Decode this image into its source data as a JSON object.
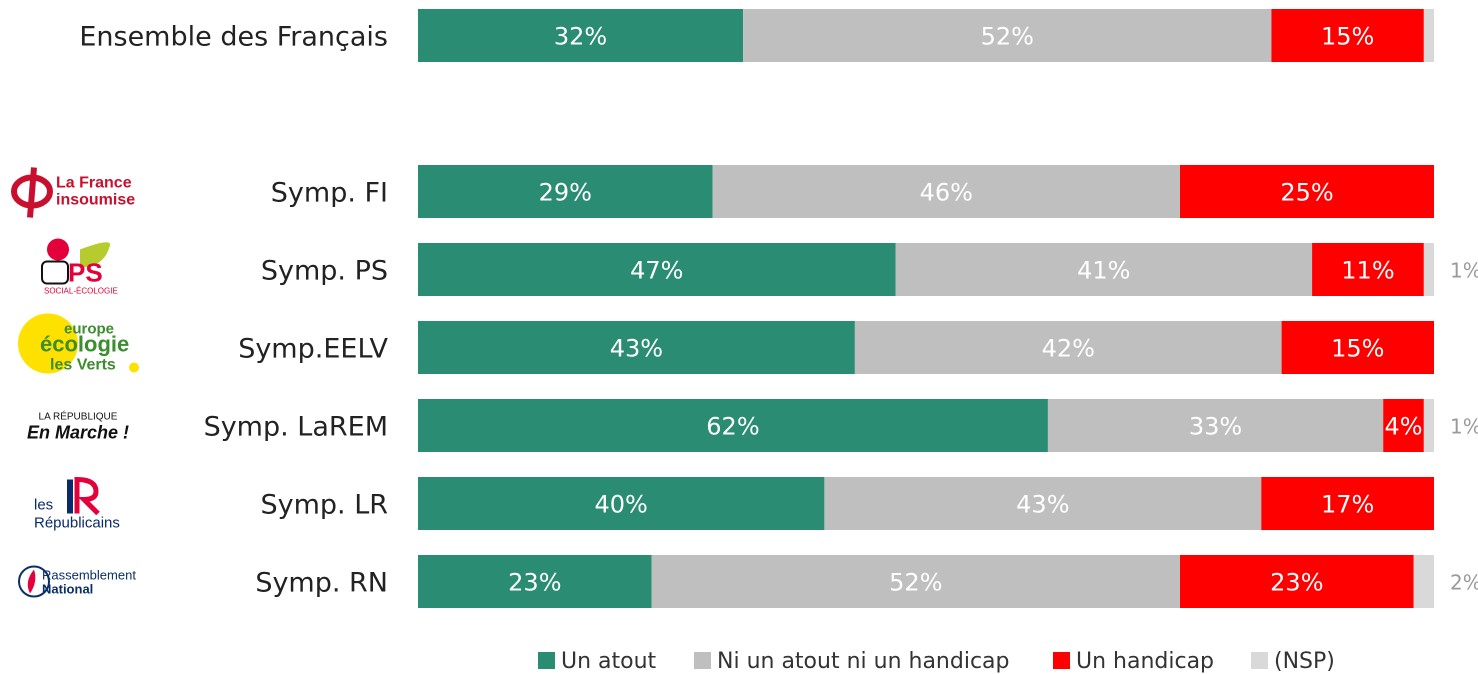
{
  "chart_data": {
    "type": "bar",
    "orientation": "horizontal",
    "stacked": true,
    "title": "",
    "xlim": [
      0,
      100
    ],
    "grid": false,
    "legend_position": "bottom",
    "categories": [
      "Ensemble des Français",
      "Symp. FI",
      "Symp. PS",
      "Symp.EELV",
      "Symp. LaREM",
      "Symp. LR",
      "Symp. RN"
    ],
    "series": [
      {
        "name": "Un atout",
        "color": "#2a8c72",
        "values": [
          32,
          29,
          47,
          43,
          62,
          40,
          23
        ]
      },
      {
        "name": "Ni un atout ni un handicap",
        "color": "#bfbfbf",
        "values": [
          52,
          46,
          41,
          42,
          33,
          43,
          52
        ]
      },
      {
        "name": "Un handicap",
        "color": "#ff0000",
        "values": [
          15,
          25,
          11,
          15,
          4,
          17,
          23
        ]
      },
      {
        "name": "(NSP)",
        "color": "#d9d9d9",
        "values": [
          1,
          0,
          1,
          0,
          1,
          0,
          2
        ]
      }
    ],
    "value_labels": [
      [
        "32%",
        "52%",
        "15%",
        ""
      ],
      [
        "29%",
        "46%",
        "25%",
        ""
      ],
      [
        "47%",
        "41%",
        "11%",
        "1%"
      ],
      [
        "43%",
        "42%",
        "15%",
        ""
      ],
      [
        "62%",
        "33%",
        "4%",
        "1%"
      ],
      [
        "40%",
        "43%",
        "17%",
        ""
      ],
      [
        "23%",
        "52%",
        "23%",
        "2%"
      ]
    ],
    "label_colors": {
      "Un atout": "#ffffff",
      "Ni un atout ni un handicap": "#ffffff",
      "Un handicap": "#ffffff",
      "(NSP)": "#9a9a9a"
    }
  },
  "logos": [
    {
      "row": 1,
      "name": "lfi-logo",
      "text": [
        "La France",
        "insoumise"
      ],
      "color": "#c8102e"
    },
    {
      "row": 2,
      "name": "ps-logo",
      "text": [
        "PS",
        "SOCIAL-ÉCOLOGIE"
      ],
      "color": "#e4003a"
    },
    {
      "row": 3,
      "name": "eelv-logo",
      "text": [
        "europe",
        "écologie",
        "les Verts"
      ],
      "color": "#3b8e2e"
    },
    {
      "row": 4,
      "name": "larem-logo",
      "text": [
        "LA RÉPUBLIQUE",
        "En Marche !"
      ],
      "color": "#111111"
    },
    {
      "row": 5,
      "name": "lr-logo",
      "text": [
        "les",
        "Républicains"
      ],
      "color": "#0a2a6b"
    },
    {
      "row": 6,
      "name": "rn-logo",
      "text": [
        "Rassemblement",
        "National"
      ],
      "color": "#0b2f6a"
    }
  ]
}
